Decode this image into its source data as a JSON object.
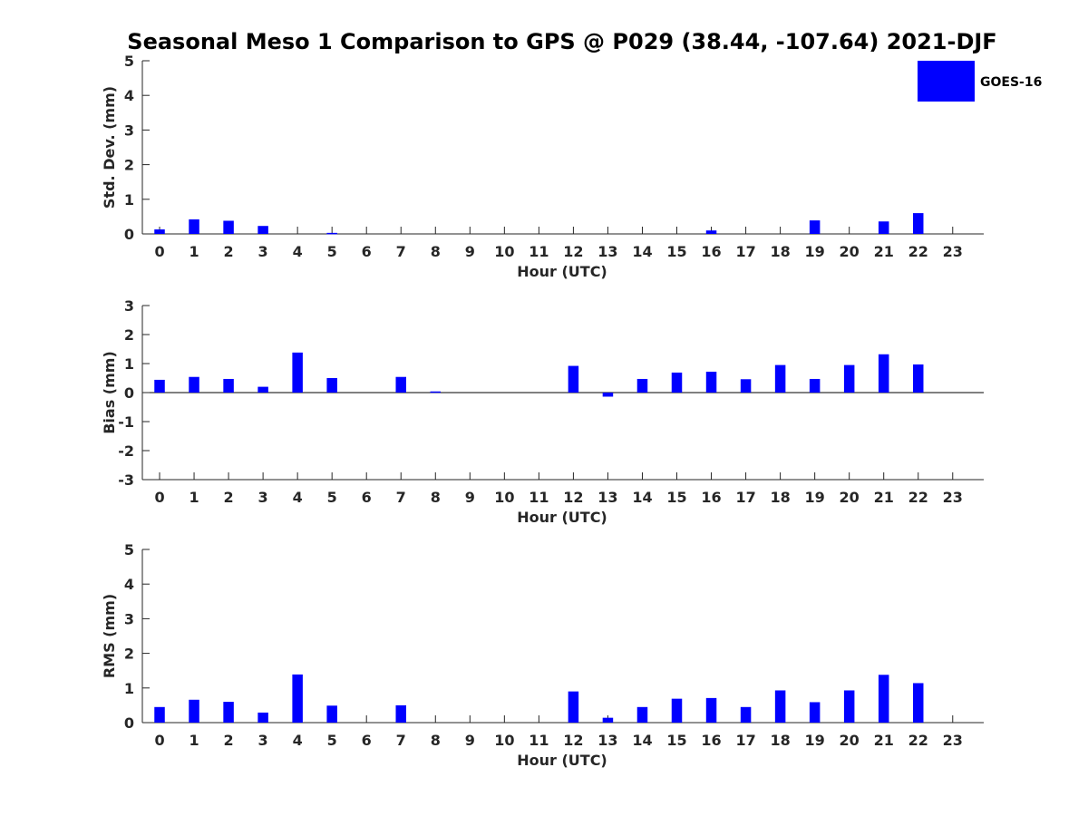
{
  "figure": {
    "title": "Seasonal Meso 1 Comparison to GPS @ P029 (38.44, -107.64) 2021-DJF",
    "legend": {
      "label": "GOES-16",
      "color": "#0000ff",
      "placement": "top-right"
    }
  },
  "chart_data": [
    {
      "type": "bar",
      "ylabel": "Std. Dev. (mm)",
      "xlabel": "Hour (UTC)",
      "ylim": [
        0,
        5
      ],
      "yticks": [
        0,
        1,
        2,
        3,
        4,
        5
      ],
      "categories": [
        0,
        1,
        2,
        3,
        4,
        5,
        6,
        7,
        8,
        9,
        10,
        11,
        12,
        13,
        14,
        15,
        16,
        17,
        18,
        19,
        20,
        21,
        22,
        23
      ],
      "series": [
        {
          "name": "GOES-16",
          "color": "#0000ff",
          "values": [
            0.13,
            0.42,
            0.38,
            0.23,
            0,
            0.03,
            0,
            0,
            0,
            0,
            0,
            0,
            0,
            0,
            0,
            0,
            0.1,
            0,
            0,
            0.39,
            0,
            0.36,
            0.6,
            0
          ]
        }
      ]
    },
    {
      "type": "bar",
      "ylabel": "Bias (mm)",
      "xlabel": "Hour (UTC)",
      "ylim": [
        -3,
        3
      ],
      "yticks": [
        -3,
        -2,
        -1,
        0,
        1,
        2,
        3
      ],
      "categories": [
        0,
        1,
        2,
        3,
        4,
        5,
        6,
        7,
        8,
        9,
        10,
        11,
        12,
        13,
        14,
        15,
        16,
        17,
        18,
        19,
        20,
        21,
        22,
        23
      ],
      "series": [
        {
          "name": "GOES-16",
          "color": "#0000ff",
          "values": [
            0.44,
            0.54,
            0.47,
            0.2,
            1.38,
            0.5,
            0,
            0.54,
            0.04,
            0,
            0,
            0,
            0.92,
            -0.14,
            0.47,
            0.69,
            0.72,
            0.46,
            0.95,
            0.47,
            0.95,
            1.32,
            0.97,
            0
          ]
        }
      ]
    },
    {
      "type": "bar",
      "ylabel": "RMS (mm)",
      "xlabel": "Hour (UTC)",
      "ylim": [
        0,
        5
      ],
      "yticks": [
        0,
        1,
        2,
        3,
        4,
        5
      ],
      "categories": [
        0,
        1,
        2,
        3,
        4,
        5,
        6,
        7,
        8,
        9,
        10,
        11,
        12,
        13,
        14,
        15,
        16,
        17,
        18,
        19,
        20,
        21,
        22,
        23
      ],
      "series": [
        {
          "name": "GOES-16",
          "color": "#0000ff",
          "values": [
            0.45,
            0.66,
            0.6,
            0.29,
            1.39,
            0.49,
            0,
            0.5,
            0,
            0,
            0,
            0,
            0.9,
            0.14,
            0.45,
            0.69,
            0.71,
            0.45,
            0.93,
            0.59,
            0.93,
            1.38,
            1.14,
            0
          ]
        }
      ]
    }
  ]
}
